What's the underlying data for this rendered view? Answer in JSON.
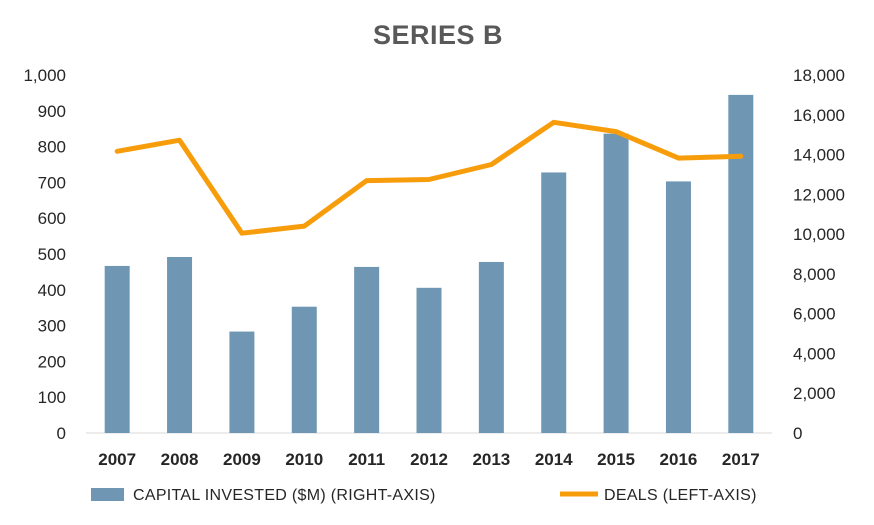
{
  "chart_data": {
    "type": "bar+line",
    "title": "SERIES B",
    "categories": [
      "2007",
      "2008",
      "2009",
      "2010",
      "2011",
      "2012",
      "2013",
      "2014",
      "2015",
      "2016",
      "2017"
    ],
    "left_axis": {
      "ylim": [
        0,
        1000
      ],
      "ticks": [
        0,
        100,
        200,
        300,
        400,
        500,
        600,
        700,
        800,
        900,
        1000
      ],
      "tick_labels": [
        "0",
        "100",
        "200",
        "300",
        "400",
        "500",
        "600",
        "700",
        "800",
        "900",
        "1,000"
      ]
    },
    "right_axis": {
      "ylim": [
        0,
        18000
      ],
      "ticks": [
        0,
        2000,
        4000,
        6000,
        8000,
        10000,
        12000,
        14000,
        16000,
        18000
      ],
      "tick_labels": [
        "0",
        "2,000",
        "4,000",
        "6,000",
        "8,000",
        "10,000",
        "12,000",
        "14,000",
        "16,000",
        "18,000"
      ]
    },
    "series": [
      {
        "name": "CAPITAL INVESTED ($M) (RIGHT-AXIS)",
        "type": "bar",
        "color": "#6f97b3",
        "values": [
          8400,
          8850,
          5100,
          6350,
          8350,
          7300,
          8600,
          13100,
          15050,
          12650,
          17000
        ]
      },
      {
        "name": "DEALS (LEFT-AXIS)",
        "type": "line",
        "color": "#f79d0c",
        "values": [
          787,
          818,
          558,
          578,
          705,
          708,
          750,
          868,
          842,
          768,
          773
        ]
      }
    ],
    "legend": "bottom"
  }
}
